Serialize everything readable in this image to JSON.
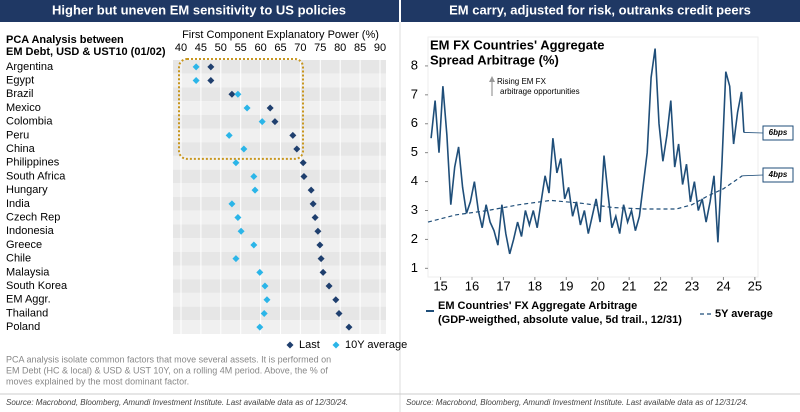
{
  "headers": [
    "Higher but uneven EM sensitivity to US policies",
    "EM carry, adjusted for risk, outranks credit peers"
  ],
  "chart_data": [
    {
      "type": "dot",
      "title_lines": [
        "PCA Analysis between",
        "EM Debt, USD & UST10 (01/02)"
      ],
      "x_label": "First Component Explanatory Power (%)",
      "categories": [
        "Argentina",
        "Egypt",
        "Brazil",
        "Mexico",
        "Colombia",
        "Peru",
        "China",
        "Philippines",
        "South Africa",
        "Hungary",
        "India",
        "Czech Rep",
        "Indonesia",
        "Greece",
        "Chile",
        "Malaysia",
        "South Korea",
        "EM Aggr.",
        "Thailand",
        "Poland"
      ],
      "series": [
        {
          "name": "Last",
          "color": "#1f3f6e",
          "values": [
            47.5,
            47.5,
            52.8,
            62.4,
            63.6,
            68.1,
            69.1,
            70.7,
            70.9,
            72.7,
            73.2,
            73.7,
            74.4,
            74.9,
            75.2,
            75.7,
            77.2,
            78.9,
            79.7,
            82.2
          ]
        },
        {
          "name": "10Y average",
          "color": "#2bb5e8",
          "values": [
            43.8,
            43.8,
            54.3,
            56.6,
            60.4,
            52.1,
            55.8,
            53.8,
            58.3,
            58.6,
            52.8,
            54.3,
            55.1,
            58.3,
            53.8,
            59.8,
            61.1,
            61.6,
            60.9,
            59.8
          ]
        }
      ],
      "xlim": [
        40,
        90
      ],
      "xticks": [
        40,
        45,
        50,
        55,
        60,
        65,
        70,
        75,
        80,
        85,
        90
      ],
      "grid": true
    },
    {
      "type": "line",
      "title_lines": [
        "EM FX Countries' Aggregate",
        "Spread Arbitrage (%)"
      ],
      "annotation_lines": [
        "Rising EM FX",
        "arbitrage opportunities"
      ],
      "series": [
        {
          "name": "EM Countries' FX Aggregate Arbitrage",
          "note": "(GDP-weigthed, absolute value, 5d trail., 12/31)",
          "end_label": "6bps",
          "color": "#1f4e79",
          "dashed": false,
          "x": [
            14.7,
            14.825,
            14.95,
            15.075,
            15.2,
            15.325,
            15.45,
            15.575,
            15.7,
            15.825,
            15.95,
            16.075,
            16.2,
            16.325,
            16.45,
            16.575,
            16.7,
            16.825,
            16.95,
            17.075,
            17.2,
            17.325,
            17.45,
            17.575,
            17.7,
            17.825,
            17.95,
            18.075,
            18.2,
            18.325,
            18.45,
            18.575,
            18.7,
            18.825,
            18.95,
            19.075,
            19.2,
            19.325,
            19.45,
            19.575,
            19.7,
            19.825,
            19.95,
            20.075,
            20.2,
            20.325,
            20.45,
            20.575,
            20.7,
            20.825,
            20.95,
            21.075,
            21.2,
            21.325,
            21.45,
            21.575,
            21.7,
            21.825,
            21.95,
            22.075,
            22.2,
            22.325,
            22.45,
            22.575,
            22.7,
            22.825,
            22.95,
            23.075,
            23.2,
            23.325,
            23.45,
            23.575,
            23.7,
            23.825,
            23.95,
            24.075,
            24.2,
            24.325,
            24.45,
            24.575,
            24.65
          ],
          "values": [
            5.5,
            6.8,
            5.0,
            7.3,
            5.6,
            3.2,
            4.5,
            5.2,
            3.8,
            2.9,
            3.3,
            4.0,
            3.0,
            2.4,
            3.2,
            2.6,
            2.3,
            1.8,
            3.2,
            2.2,
            1.5,
            2.0,
            2.6,
            2.1,
            3.0,
            2.5,
            3.0,
            2.4,
            3.3,
            4.2,
            3.6,
            5.5,
            4.3,
            4.8,
            3.4,
            3.8,
            2.8,
            3.3,
            2.5,
            3.0,
            2.2,
            2.8,
            3.4,
            2.6,
            4.9,
            3.6,
            2.4,
            2.8,
            2.2,
            3.2,
            2.6,
            3.0,
            2.3,
            2.8,
            3.9,
            5.0,
            7.6,
            8.6,
            6.0,
            4.7,
            5.6,
            6.8,
            4.5,
            5.3,
            3.9,
            4.6,
            3.3,
            4.0,
            3.0,
            3.4,
            2.6,
            3.3,
            4.2,
            1.9,
            4.6,
            7.8,
            7.3,
            5.3,
            6.4,
            7.1,
            5.7
          ]
        },
        {
          "name": "5Y average",
          "end_label": "4bps",
          "color": "#1f4e79",
          "dashed": true,
          "x": [
            14.6,
            15.5,
            16.5,
            17.5,
            18.5,
            19.5,
            20.5,
            21.5,
            22.5,
            23,
            23.5,
            24,
            24.6
          ],
          "values": [
            2.6,
            2.85,
            3.0,
            3.2,
            3.35,
            3.25,
            3.1,
            3.05,
            3.05,
            3.2,
            3.5,
            3.75,
            4.2
          ]
        }
      ],
      "xlim": [
        14.6,
        25.1
      ],
      "xticks": [
        15,
        16,
        17,
        18,
        19,
        20,
        21,
        22,
        23,
        24,
        25
      ],
      "ylim": [
        0.7,
        9.0
      ],
      "yticks": [
        1,
        2,
        3,
        4,
        5,
        6,
        7,
        8
      ]
    }
  ],
  "footnote_lines": [
    "PCA analysis isolate common factors that move several assets. It is performed on",
    "EM Debt (HC & local) & USD & UST 10Y, on a rolling 4M period. Above, the % of",
    "moves explained by the most dominant factor."
  ],
  "sources": [
    "Source: Macrobond, Bloomberg, Amundi Investment Institute. Last available data as of 12/30/24.",
    "Source: Macrobond, Bloomberg, Amundi Investment Institute. Last available data as of 12/31/24."
  ]
}
